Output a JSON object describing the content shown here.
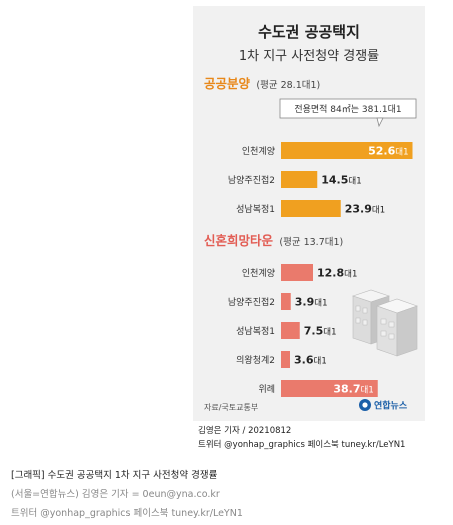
{
  "page": {
    "credit_byline": "김영은 기자 / 20210812",
    "credit_social": "트위터 @yonhap_graphics  페이스북 tuney.kr/LeYN1",
    "caption_title": "[그래픽] 수도권 공공택지 1차 지구 사전청약 경쟁률",
    "caption_byline": "(서울=연합뉴스) 김영은 기자 = 0eun@yna.co.kr",
    "caption_social": "트위터 @yonhap_graphics  페이스북 tuney.kr/LeYN1"
  },
  "chart_data": {
    "type": "bar",
    "orientation": "horizontal",
    "title": "수도권 공공택지",
    "subtitle": "1차 지구 사전청약 경쟁률",
    "unit": "대1",
    "source": "자료/국토교통부",
    "logo": "연합뉴스",
    "groups": [
      {
        "name": "공공분양",
        "average_label": "(평균 28.1대1)",
        "color": "#f0a020",
        "callout": "전용면적 84㎡는 381.1대1",
        "categories": [
          "인천계양",
          "남양주진접2",
          "성남복정1"
        ],
        "values": [
          52.6,
          14.5,
          23.9
        ],
        "value_labels": [
          "52.6",
          "14.5",
          "23.9"
        ]
      },
      {
        "name": "신혼희망타운",
        "average_label": "(평균 13.7대1)",
        "color": "#ea7a6c",
        "categories": [
          "인천계양",
          "남양주진접2",
          "성남복정1",
          "의왕청계2",
          "위례"
        ],
        "values": [
          12.8,
          3.9,
          7.5,
          3.6,
          38.7
        ],
        "value_labels": [
          "12.8",
          "3.9",
          "7.5",
          "3.6",
          "38.7"
        ]
      }
    ],
    "colors": {
      "title_group1": "#e8881a",
      "title_group2": "#e25d54",
      "label": "#333333"
    },
    "icons": [
      "apartment-buildings-icon",
      "yonhap-logo-icon"
    ]
  }
}
